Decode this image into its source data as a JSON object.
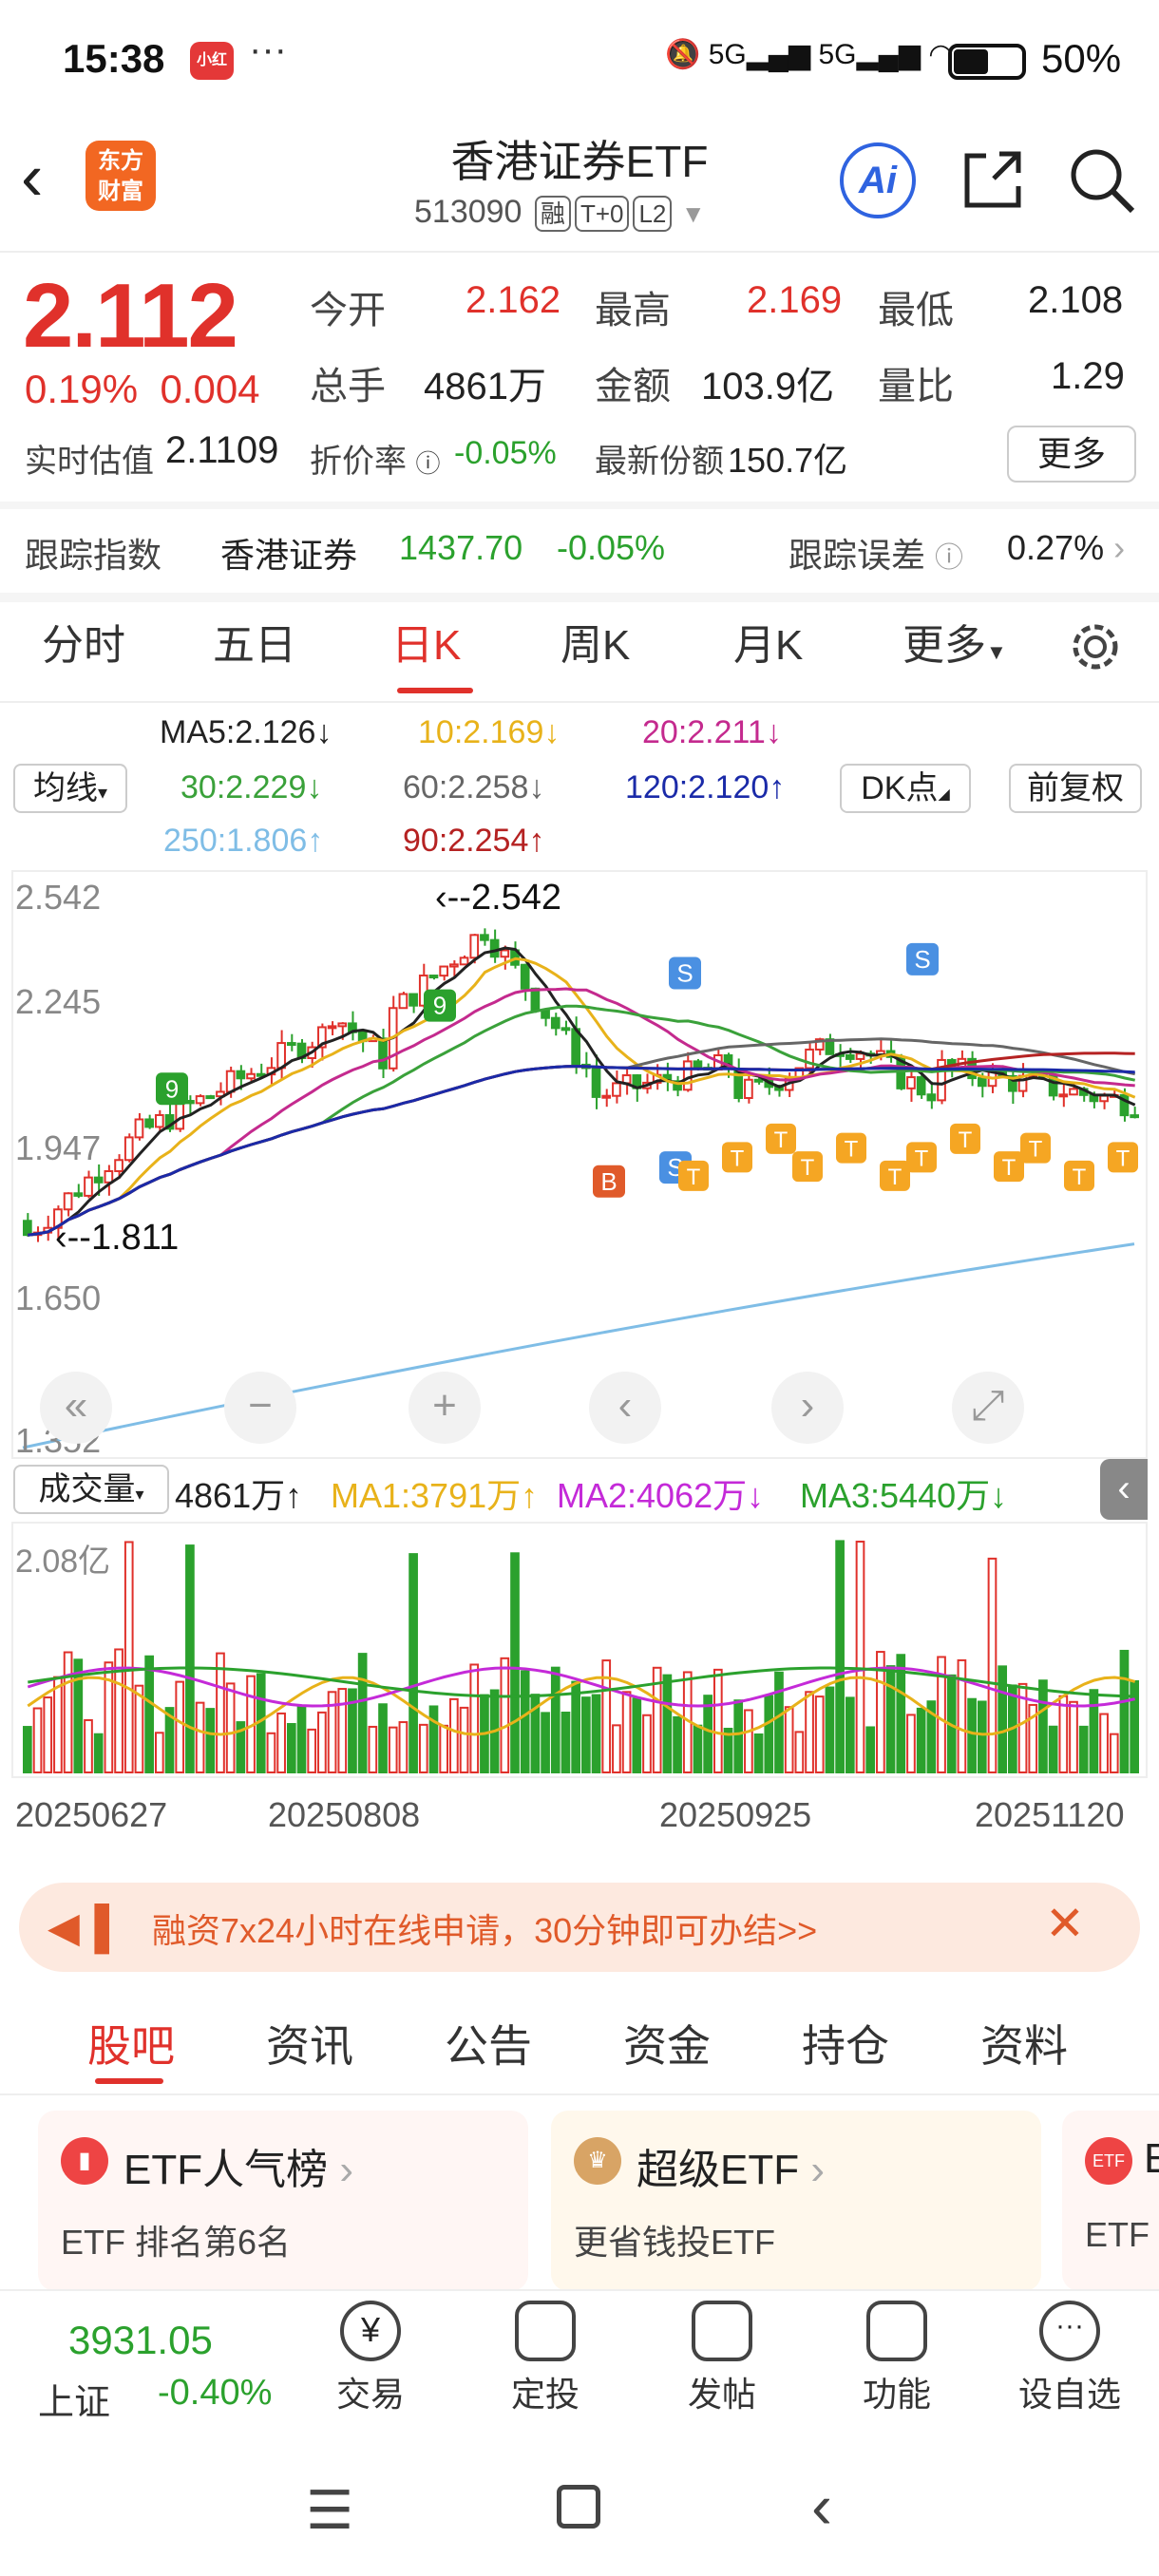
{
  "status": {
    "time": "15:38",
    "app_badge": "小红书",
    "dots": "···",
    "battery": "50%",
    "network": "5G"
  },
  "header": {
    "logo": "东方\n财富",
    "title": "香港证券ETF",
    "code": "513090",
    "tags": [
      "融",
      "T+0",
      "L2"
    ],
    "ai": "Ai"
  },
  "quote": {
    "price": "2.112",
    "pct": "0.19%",
    "chg": "0.004",
    "open_label": "今开",
    "open": "2.162",
    "high_label": "最高",
    "high": "2.169",
    "low_label": "最低",
    "low": "2.108",
    "vol_label": "总手",
    "vol": "4861万",
    "amt_label": "金额",
    "amt": "103.9亿",
    "ratio_label": "量比",
    "ratio": "1.29",
    "iopv_label": "实时估值",
    "iopv": "2.1109",
    "disc_label": "折价率",
    "disc": "-0.05%",
    "share_label": "最新份额",
    "share": "150.7亿",
    "more": "更多"
  },
  "track": {
    "label": "跟踪指数",
    "name": "香港证券",
    "val": "1437.70",
    "pct": "-0.05%",
    "err_label": "跟踪误差",
    "err": "0.27%"
  },
  "chart_tabs": [
    "分时",
    "五日",
    "日K",
    "周K",
    "月K",
    "更多"
  ],
  "ma_lines": {
    "ma5": "MA5:2.126↓",
    "ma10": "10:2.169↓",
    "ma20": "20:2.211↓",
    "ma30": "30:2.229↓",
    "ma60": "60:2.258↓",
    "ma120": "120:2.120↑",
    "ma250": "250:1.806↑",
    "ma90": "90:2.254↑",
    "ma_btn": "均线",
    "dk_btn": "DK点",
    "fq_btn": "前复权"
  },
  "chart_data": {
    "type": "candlestick",
    "y_ticks": [
      "2.542",
      "2.245",
      "1.947",
      "1.650",
      "1.352"
    ],
    "annotations": [
      "2.542",
      "1.811"
    ],
    "x_ticks": [
      "20250627",
      "20250808",
      "20250925",
      "20251120"
    ],
    "volume_label": "成交量",
    "volume": "4861万↑",
    "vol_ma1": "MA1:3791万↑",
    "vol_ma2": "MA2:4062万↓",
    "vol_ma3": "MA3:5440万↓",
    "vol_tick": "2.08亿",
    "markers": [
      "S",
      "B",
      "T",
      "9"
    ]
  },
  "colors": {
    "up": "#e0312b",
    "down": "#2ba12d",
    "ma5": "#222222",
    "ma10": "#e8b21a",
    "ma20": "#c42a8e",
    "ma30": "#3aa13a",
    "ma60": "#666666",
    "ma120": "#1a2aa8",
    "ma250": "#7fbde6",
    "ma90": "#b52222"
  },
  "banner": {
    "text": "融资7x24小时在线申请，30分钟即可办结>>"
  },
  "bottom_tabs": [
    "股吧",
    "资讯",
    "公告",
    "资金",
    "持仓",
    "资料"
  ],
  "cards": [
    {
      "title": "ETF人气榜",
      "sub": "ETF 排名第6名"
    },
    {
      "title": "超级ETF",
      "sub": "更省钱投ETF"
    },
    {
      "title": "E",
      "sub": "ETF"
    }
  ],
  "bottombar": {
    "index_val": "3931.05",
    "index_name": "上证",
    "index_pct": "-0.40%",
    "items": [
      "交易",
      "定投",
      "发帖",
      "功能",
      "设自选"
    ]
  }
}
